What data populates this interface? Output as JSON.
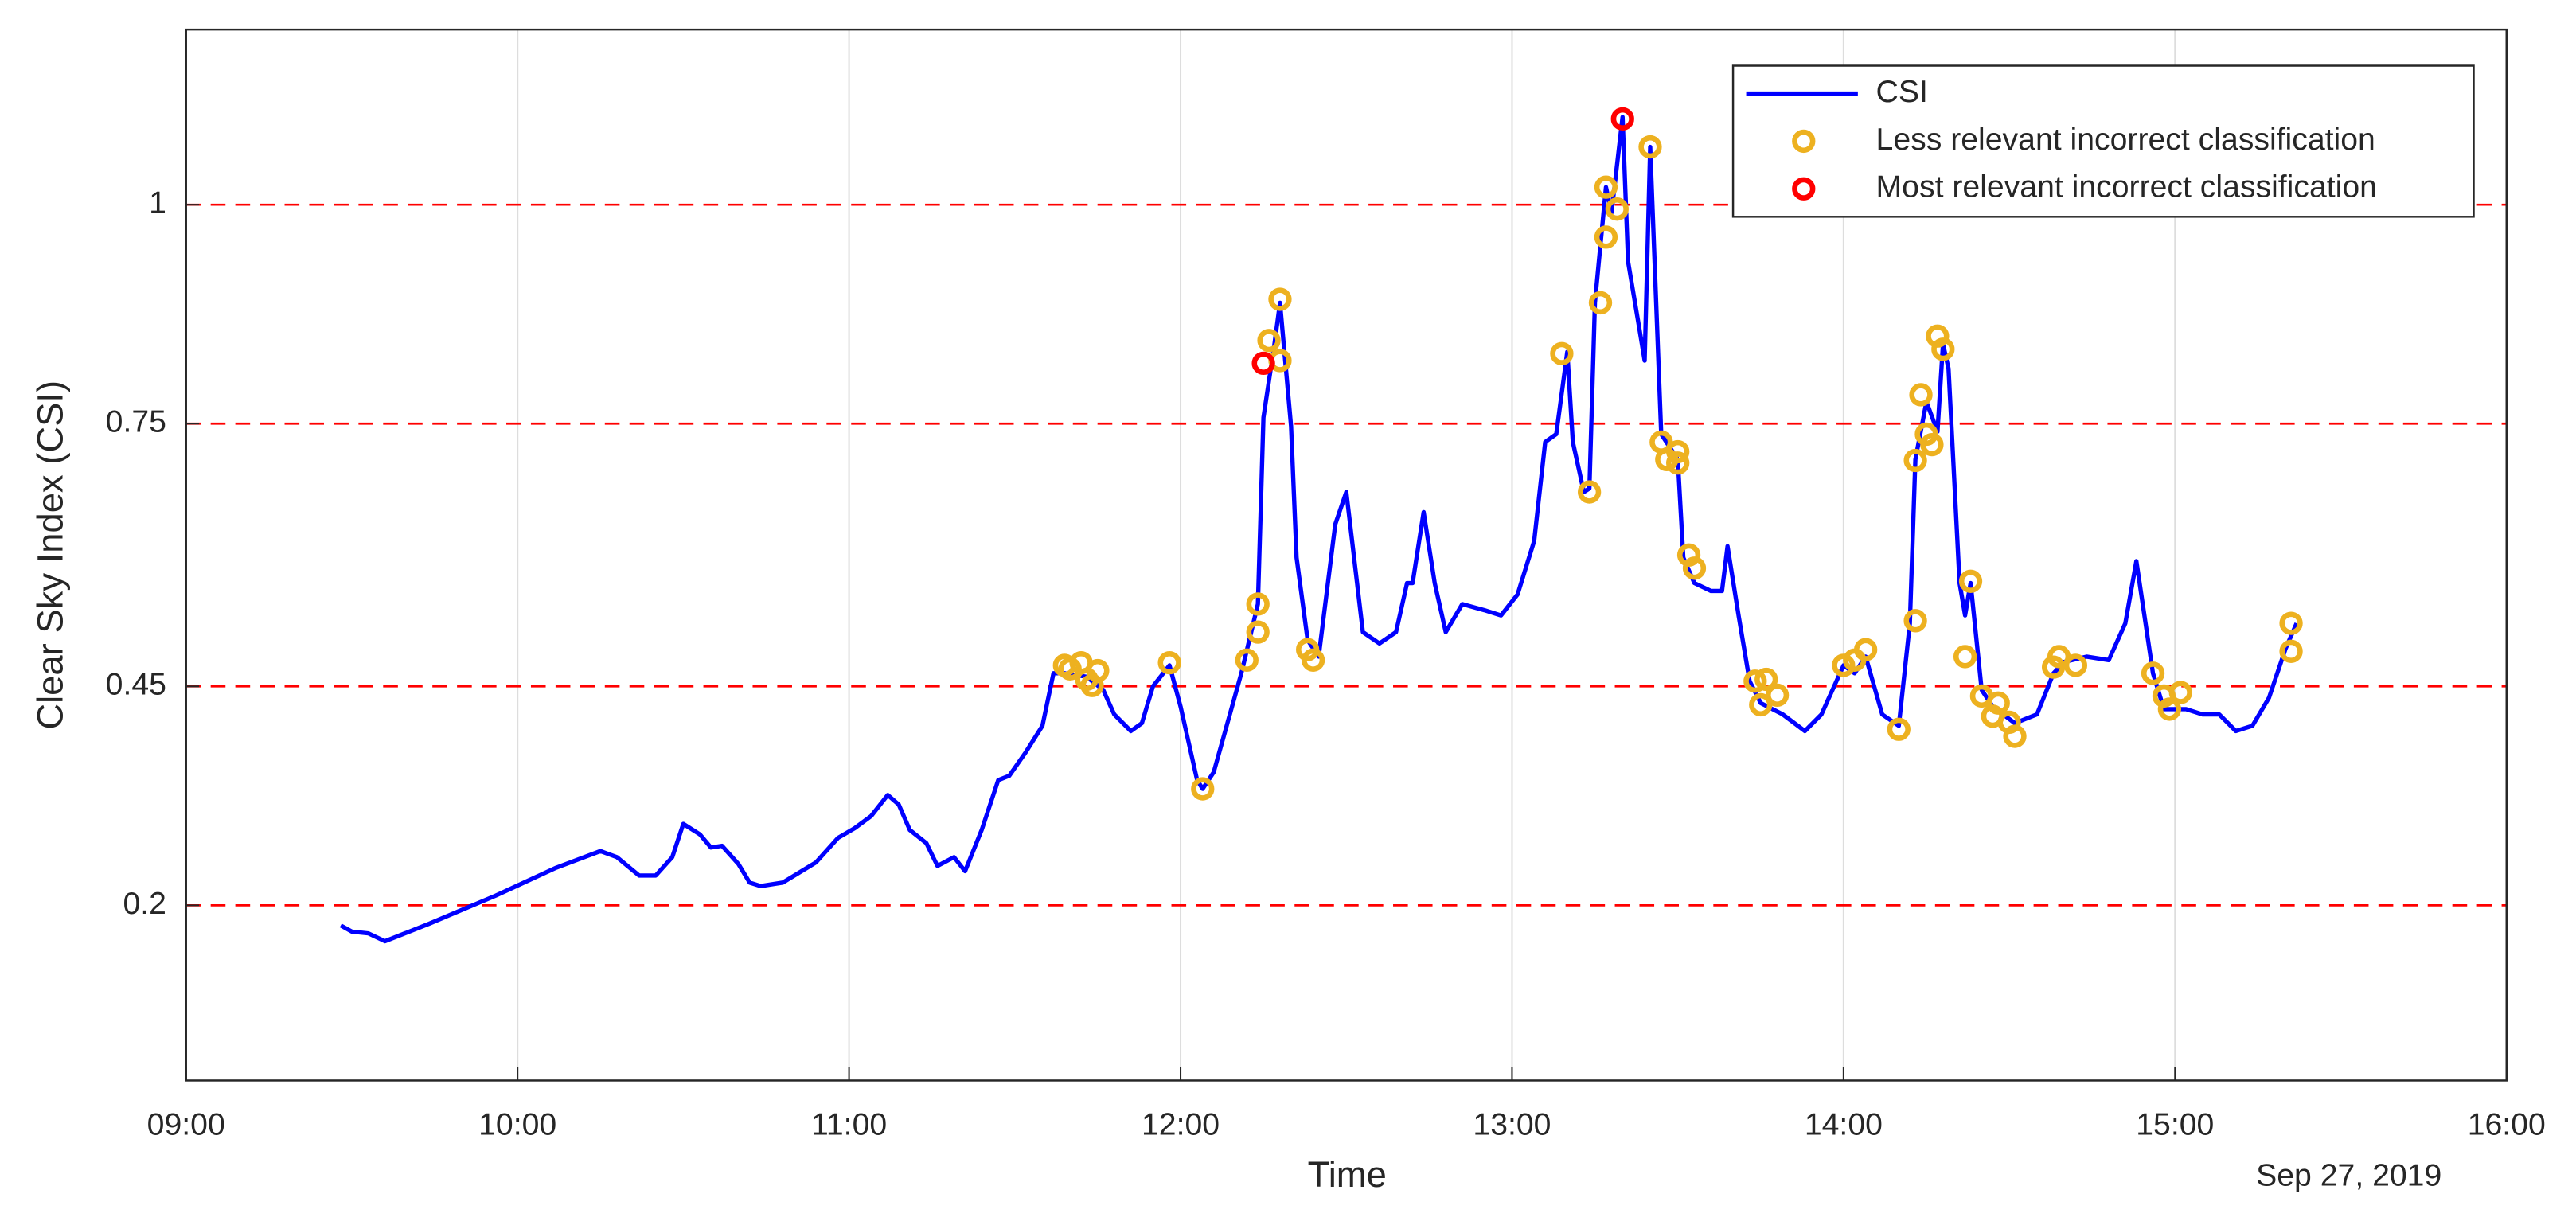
{
  "chart_data": {
    "type": "line",
    "xlabel": "Time",
    "ylabel": "Clear Sky Index (CSI)",
    "annotation": "Sep 27, 2019",
    "xlim": [
      "09:00",
      "16:00"
    ],
    "xticks": [
      "09:00",
      "10:00",
      "11:00",
      "12:00",
      "13:00",
      "14:00",
      "15:00",
      "16:00"
    ],
    "ylim": [
      0,
      1.2
    ],
    "yticks": [
      0.2,
      0.45,
      0.75,
      1
    ],
    "xgrid": true,
    "xgrid_color": "#dddddd",
    "ygrid": true,
    "ygrid_color": "#ff0000",
    "ygrid_dashed": true,
    "legend": "upper right",
    "series": [
      {
        "name": "CSI",
        "type": "line",
        "color": "#0000ff",
        "x": [
          "09:28",
          "09:30",
          "09:33",
          "09:36",
          "09:44",
          "09:56",
          "10:07",
          "10:15",
          "10:18",
          "10:22",
          "10:25",
          "10:28",
          "10:30",
          "10:33",
          "10:35",
          "10:37",
          "10:40",
          "10:42",
          "10:44",
          "10:48",
          "10:54",
          "10:58",
          "11:01",
          "11:04",
          "11:07",
          "11:09",
          "11:11",
          "11:14",
          "11:16",
          "11:19",
          "11:21",
          "11:24",
          "11:27",
          "11:29",
          "11:32",
          "11:35",
          "11:37",
          "11:39",
          "11:43",
          "11:46",
          "11:48",
          "11:51",
          "11:53",
          "11:55",
          "11:58",
          "12:00",
          "12:03",
          "12:04",
          "12:06",
          "12:11",
          "12:14",
          "12:15",
          "12:17",
          "12:18",
          "12:20",
          "12:21",
          "12:23",
          "12:25",
          "12:28",
          "12:30",
          "12:33",
          "12:36",
          "12:39",
          "12:41",
          "12:42",
          "12:44",
          "12:46",
          "12:48",
          "12:51",
          "12:55",
          "12:58",
          "13:01",
          "13:04",
          "13:06",
          "13:08",
          "13:10",
          "13:11",
          "13:13",
          "13:14",
          "13:15",
          "13:17",
          "13:18",
          "13:20",
          "13:21",
          "13:23",
          "13:24",
          "13:25",
          "13:27",
          "13:30",
          "13:31",
          "13:33",
          "13:36",
          "13:38",
          "13:39",
          "13:41",
          "13:43",
          "13:45",
          "13:49",
          "13:53",
          "13:56",
          "14:00",
          "14:02",
          "14:04",
          "14:07",
          "14:10",
          "14:12",
          "14:13",
          "14:15",
          "14:17",
          "14:18",
          "14:19",
          "14:21",
          "14:22",
          "14:23",
          "14:25",
          "14:27",
          "14:31",
          "14:35",
          "14:38",
          "14:40",
          "14:44",
          "14:48",
          "14:51",
          "14:53",
          "14:56",
          "14:58",
          "15:02",
          "15:05",
          "15:08",
          "15:11",
          "15:14",
          "15:17",
          "15:20",
          "15:22"
        ],
        "values": [
          0.177,
          0.17,
          0.168,
          0.159,
          0.179,
          0.211,
          0.243,
          0.262,
          0.255,
          0.234,
          0.234,
          0.255,
          0.293,
          0.281,
          0.266,
          0.268,
          0.247,
          0.226,
          0.222,
          0.226,
          0.249,
          0.277,
          0.288,
          0.302,
          0.326,
          0.315,
          0.286,
          0.271,
          0.245,
          0.255,
          0.239,
          0.286,
          0.343,
          0.348,
          0.375,
          0.405,
          0.465,
          0.465,
          0.461,
          0.446,
          0.418,
          0.399,
          0.408,
          0.45,
          0.474,
          0.427,
          0.343,
          0.333,
          0.352,
          0.465,
          0.544,
          0.757,
          0.841,
          0.888,
          0.747,
          0.597,
          0.503,
          0.484,
          0.635,
          0.672,
          0.512,
          0.499,
          0.512,
          0.568,
          0.568,
          0.649,
          0.568,
          0.512,
          0.544,
          0.537,
          0.531,
          0.555,
          0.616,
          0.729,
          0.738,
          0.832,
          0.729,
          0.672,
          0.676,
          0.888,
          1.02,
          0.991,
          1.1,
          0.935,
          0.86,
          0.822,
          1.066,
          0.738,
          0.709,
          0.597,
          0.568,
          0.559,
          0.559,
          0.61,
          0.531,
          0.456,
          0.431,
          0.418,
          0.399,
          0.418,
          0.474,
          0.465,
          0.484,
          0.418,
          0.405,
          0.522,
          0.709,
          0.775,
          0.741,
          0.841,
          0.813,
          0.568,
          0.531,
          0.568,
          0.446,
          0.427,
          0.408,
          0.418,
          0.465,
          0.478,
          0.484,
          0.48,
          0.522,
          0.593,
          0.465,
          0.424,
          0.424,
          0.418,
          0.418,
          0.399,
          0.405,
          0.437,
          0.493,
          0.522
        ]
      },
      {
        "name": "Less relevant incorrect classification",
        "type": "scatter",
        "color": "#edb120",
        "x": [
          "11:39",
          "11:40",
          "11:42",
          "11:43",
          "11:44",
          "11:45",
          "11:58",
          "12:04",
          "12:12",
          "12:14",
          "12:14",
          "12:16",
          "12:18",
          "12:18",
          "12:23",
          "12:24",
          "13:09",
          "13:14",
          "13:16",
          "13:17",
          "13:17",
          "13:19",
          "13:25",
          "13:27",
          "13:28",
          "13:30",
          "13:30",
          "13:32",
          "13:33",
          "13:44",
          "13:45",
          "13:46",
          "13:48",
          "14:00",
          "14:02",
          "14:04",
          "14:10",
          "14:13",
          "14:13",
          "14:14",
          "14:15",
          "14:16",
          "14:17",
          "14:18",
          "14:23",
          "14:22",
          "14:25",
          "14:27",
          "14:28",
          "14:30",
          "14:31",
          "14:38",
          "14:39",
          "14:42",
          "14:56",
          "14:58",
          "14:59",
          "15:01",
          "15:21",
          "15:21"
        ],
        "values": [
          0.474,
          0.47,
          0.477,
          0.458,
          0.451,
          0.468,
          0.477,
          0.333,
          0.48,
          0.512,
          0.544,
          0.845,
          0.822,
          0.892,
          0.492,
          0.48,
          0.83,
          0.672,
          0.888,
          1.02,
          0.963,
          0.995,
          1.066,
          0.729,
          0.709,
          0.718,
          0.705,
          0.6,
          0.585,
          0.456,
          0.429,
          0.458,
          0.44,
          0.474,
          0.48,
          0.492,
          0.401,
          0.525,
          0.708,
          0.783,
          0.738,
          0.726,
          0.85,
          0.835,
          0.57,
          0.484,
          0.439,
          0.416,
          0.431,
          0.409,
          0.393,
          0.472,
          0.484,
          0.474,
          0.465,
          0.439,
          0.424,
          0.443,
          0.522,
          0.49
        ]
      },
      {
        "name": "Most relevant incorrect classification",
        "type": "scatter",
        "color": "#ff0000",
        "x": [
          "12:15",
          "13:20"
        ],
        "values": [
          0.819,
          1.098
        ]
      }
    ]
  }
}
